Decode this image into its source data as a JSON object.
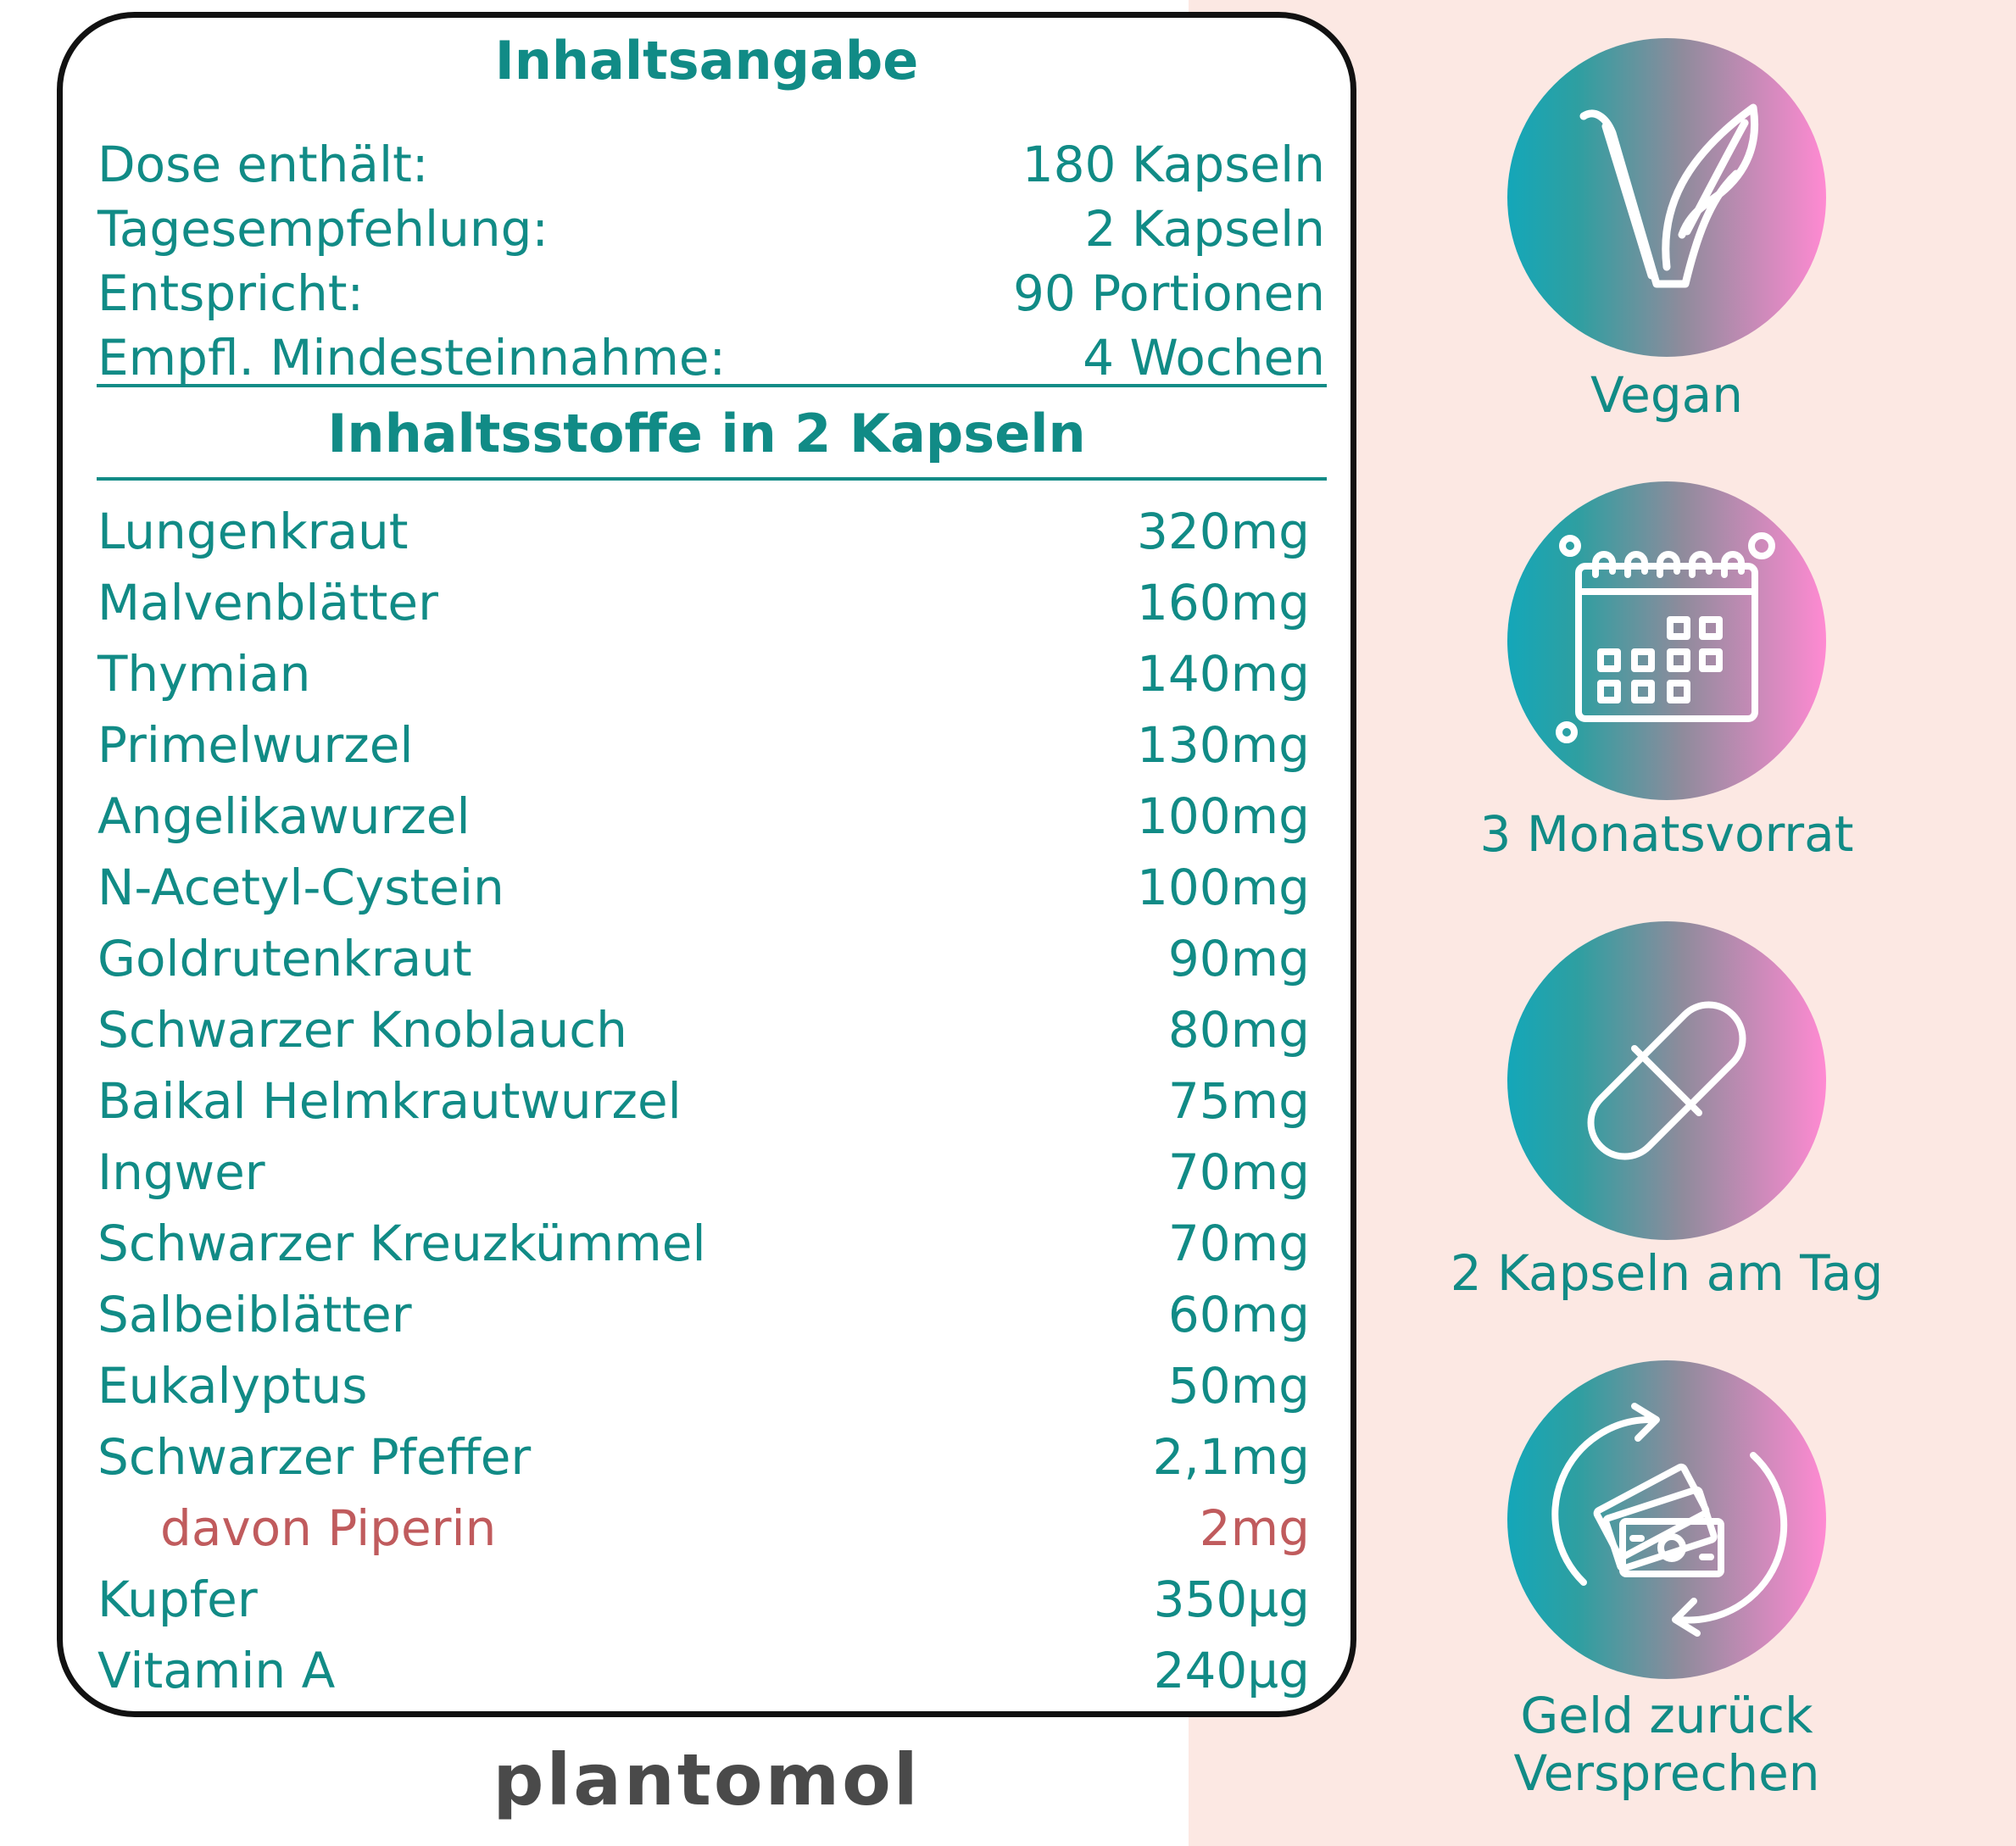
{
  "title": "Inhaltsangabe",
  "summary": [
    {
      "label": "Dose enthält:",
      "value": "180 Kapseln"
    },
    {
      "label": "Tagesempfehlung:",
      "value": "2 Kapseln"
    },
    {
      "label": "Entspricht:",
      "value": "90 Portionen"
    },
    {
      "label": "Empfl. Mindesteinnahme:",
      "value": "4 Wochen"
    }
  ],
  "ingredients_title": "Inhaltsstoffe in 2 Kapseln",
  "ingredients": [
    {
      "label": "Lungenkraut",
      "value": "320mg"
    },
    {
      "label": "Malvenblätter",
      "value": "160mg"
    },
    {
      "label": "Thymian",
      "value": "140mg"
    },
    {
      "label": "Primelwurzel",
      "value": "130mg"
    },
    {
      "label": "Angelikawurzel",
      "value": "100mg"
    },
    {
      "label": "N-Acetyl-Cystein",
      "value": "100mg"
    },
    {
      "label": "Goldrutenkraut",
      "value": "90mg"
    },
    {
      "label": "Schwarzer Knoblauch",
      "value": "80mg"
    },
    {
      "label": "Baikal Helmkrautwurzel",
      "value": "75mg"
    },
    {
      "label": "Ingwer",
      "value": "70mg"
    },
    {
      "label": "Schwarzer Kreuzkümmel",
      "value": "70mg"
    },
    {
      "label": "Salbeiblätter",
      "value": "60mg"
    },
    {
      "label": "Eukalyptus",
      "value": "50mg"
    },
    {
      "label": "Schwarzer Pfeffer",
      "value": "2,1mg"
    },
    {
      "label": "davon Piperin",
      "value": "2mg"
    },
    {
      "label": "Kupfer",
      "value": "350µg"
    },
    {
      "label": "Vitamin A",
      "value": "240µg"
    }
  ],
  "brand": "plantomol",
  "badges": [
    {
      "icon": "vegan-leaf-icon",
      "label": "Vegan"
    },
    {
      "icon": "calendar-icon",
      "label": "3 Monatsvorrat"
    },
    {
      "icon": "capsule-icon",
      "label": "2 Kapseln am Tag"
    },
    {
      "icon": "money-back-icon",
      "label": "Geld zurück\nVersprechen"
    }
  ],
  "colors": {
    "teal": "#118b86",
    "sub_ingredient": "#c05b5d",
    "right_background": "#fce8e3",
    "gradient_start": "#14a7b9",
    "gradient_end": "#ff8ad2",
    "brand": "#4a4a4a"
  }
}
